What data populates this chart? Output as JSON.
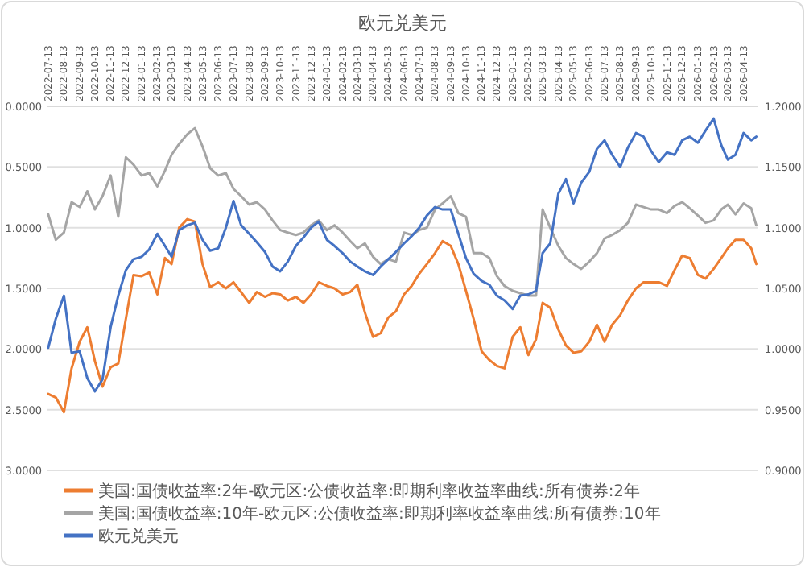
{
  "chart_data": {
    "type": "line",
    "title": "欧元兑美元",
    "x": [
      "2022-07-13",
      "2022-07-28",
      "2022-08-13",
      "2022-08-28",
      "2022-09-13",
      "2022-09-28",
      "2022-10-13",
      "2022-10-28",
      "2022-11-13",
      "2022-11-28",
      "2022-12-13",
      "2022-12-28",
      "2023-01-13",
      "2023-01-28",
      "2023-02-13",
      "2023-02-28",
      "2023-03-13",
      "2023-03-28",
      "2023-04-13",
      "2023-04-28",
      "2023-05-13",
      "2023-05-28",
      "2023-06-13",
      "2023-06-28",
      "2023-07-13",
      "2023-07-28",
      "2023-08-13",
      "2023-08-28",
      "2023-09-13",
      "2023-09-28",
      "2023-10-13",
      "2023-10-28",
      "2023-11-13",
      "2023-11-28",
      "2023-12-13",
      "2023-12-28",
      "2024-01-13",
      "2024-01-28",
      "2024-02-13",
      "2024-02-28",
      "2024-03-13",
      "2024-03-28",
      "2024-04-13",
      "2024-04-28",
      "2024-05-13",
      "2024-05-28",
      "2024-06-13",
      "2024-06-28",
      "2024-07-13",
      "2024-07-28",
      "2024-08-13",
      "2024-08-28",
      "2024-09-13",
      "2024-09-28",
      "2024-10-13",
      "2024-10-28",
      "2024-11-13",
      "2024-11-28",
      "2024-12-13",
      "2024-12-28",
      "2025-01-13",
      "2025-01-28",
      "2025-02-13",
      "2025-02-28",
      "2025-03-13",
      "2025-03-28",
      "2025-04-13",
      "2025-04-28",
      "2025-05-13",
      "2025-05-28",
      "2025-06-13",
      "2025-06-28",
      "2025-07-13",
      "2025-07-28",
      "2025-08-13",
      "2025-08-28",
      "2025-09-13",
      "2025-09-28",
      "2025-10-13",
      "2025-10-28",
      "2025-11-13",
      "2025-11-28",
      "2025-12-13",
      "2025-12-28",
      "2026-01-13",
      "2026-01-28",
      "2026-02-13",
      "2026-02-28",
      "2026-03-13",
      "2026-03-28",
      "2026-04-13",
      "2026-04-28",
      "2026-05-08"
    ],
    "xlim": [
      "2022-07-10",
      "2026-05-12"
    ],
    "xticks": [
      "2022-07-13",
      "2022-08-13",
      "2022-09-13",
      "2022-10-13",
      "2022-11-13",
      "2022-12-13",
      "2023-01-13",
      "2023-02-13",
      "2023-03-13",
      "2023-04-13",
      "2023-05-13",
      "2023-06-13",
      "2023-07-13",
      "2023-08-13",
      "2023-09-13",
      "2023-10-13",
      "2023-11-13",
      "2023-12-13",
      "2024-01-13",
      "2024-02-13",
      "2024-03-13",
      "2024-04-13",
      "2024-05-13",
      "2024-06-13",
      "2024-07-13",
      "2024-08-13",
      "2024-09-13",
      "2024-10-13",
      "2024-11-13",
      "2024-12-13",
      "2025-01-13",
      "2025-02-13",
      "2025-03-13",
      "2025-04-13",
      "2025-05-13",
      "2025-06-13",
      "2025-07-13",
      "2025-08-13",
      "2025-09-13",
      "2025-10-13",
      "2025-11-13",
      "2025-12-13",
      "2026-01-13",
      "2026-02-13",
      "2026-03-13",
      "2026-04-13"
    ],
    "ylim": [
      3,
      0
    ],
    "yticks": [
      {
        "value": 0,
        "label": "0.0000"
      },
      {
        "value": 0.5,
        "label": "0.5000"
      },
      {
        "value": 1,
        "label": "1.0000"
      },
      {
        "value": 1.5,
        "label": "1.5000"
      },
      {
        "value": 2,
        "label": "2.0000"
      },
      {
        "value": 2.5,
        "label": "2.5000"
      },
      {
        "value": 3,
        "label": "3.0000"
      }
    ],
    "y2lim": [
      0.9,
      1.2
    ],
    "y2ticks": [
      {
        "value": 0.9,
        "label": "0.9000"
      },
      {
        "value": 0.95,
        "label": "0.9500"
      },
      {
        "value": 1.0,
        "label": "1.0000"
      },
      {
        "value": 1.05,
        "label": "1.0500"
      },
      {
        "value": 1.1,
        "label": "1.1000"
      },
      {
        "value": 1.15,
        "label": "1.1500"
      },
      {
        "value": 1.2,
        "label": "1.2000"
      }
    ],
    "grid": "y",
    "legend": "bottom",
    "series": [
      {
        "name": "美国:国债收益率:2年-欧元区:公债收益率:即期利率收益率曲线:所有债券:2年",
        "color": "#ed7d31",
        "values": [
          2.37,
          2.4,
          2.52,
          2.16,
          1.94,
          1.82,
          2.1,
          2.31,
          2.15,
          2.12,
          1.75,
          1.39,
          1.4,
          1.37,
          1.55,
          1.25,
          1.3,
          1.0,
          0.93,
          0.95,
          1.3,
          1.49,
          1.45,
          1.5,
          1.45,
          1.53,
          1.62,
          1.53,
          1.57,
          1.54,
          1.55,
          1.6,
          1.57,
          1.62,
          1.55,
          1.45,
          1.48,
          1.5,
          1.55,
          1.53,
          1.47,
          1.7,
          1.9,
          1.87,
          1.74,
          1.69,
          1.55,
          1.48,
          1.38,
          1.3,
          1.21,
          1.11,
          1.15,
          1.3,
          1.52,
          1.75,
          2.02,
          2.09,
          2.14,
          2.16,
          1.9,
          1.82,
          2.05,
          1.92,
          1.62,
          1.66,
          1.84,
          1.97,
          2.03,
          2.02,
          1.94,
          1.8,
          1.94,
          1.8,
          1.72,
          1.6,
          1.5,
          1.45,
          1.45,
          1.45,
          1.48,
          1.35,
          1.23,
          1.25,
          1.39,
          1.42,
          1.34,
          1.25,
          1.17,
          1.1,
          1.1,
          1.17,
          1.3
        ]
      },
      {
        "name": "美国:国债收益率:10年-欧元区:公债收益率:即期利率收益率曲线:所有债券:10年",
        "color": "#a5a5a5",
        "values": [
          0.89,
          1.1,
          1.04,
          0.79,
          0.83,
          0.7,
          0.85,
          0.74,
          0.57,
          0.91,
          0.42,
          0.48,
          0.57,
          0.55,
          0.66,
          0.53,
          0.4,
          0.31,
          0.23,
          0.18,
          0.33,
          0.51,
          0.57,
          0.55,
          0.68,
          0.74,
          0.81,
          0.79,
          0.85,
          0.94,
          1.02,
          1.04,
          1.06,
          1.04,
          0.98,
          0.94,
          1.02,
          0.98,
          1.04,
          1.11,
          1.17,
          1.13,
          1.24,
          1.3,
          1.26,
          1.28,
          1.04,
          1.06,
          1.02,
          1.0,
          0.85,
          0.8,
          0.74,
          0.88,
          0.91,
          1.21,
          1.21,
          1.25,
          1.4,
          1.48,
          1.52,
          1.54,
          1.56,
          1.56,
          0.85,
          1.0,
          1.15,
          1.25,
          1.3,
          1.34,
          1.28,
          1.21,
          1.09,
          1.06,
          1.02,
          0.96,
          0.81,
          0.83,
          0.85,
          0.85,
          0.88,
          0.82,
          0.79,
          0.84,
          0.9,
          0.96,
          0.94,
          0.85,
          0.81,
          0.89,
          0.8,
          0.84,
          0.98
        ]
      },
      {
        "name": "欧元兑美元",
        "color": "#4472c4",
        "axis": "y2",
        "values": [
          1.001,
          1.025,
          1.044,
          0.997,
          0.998,
          0.976,
          0.965,
          0.975,
          1.018,
          1.044,
          1.065,
          1.074,
          1.076,
          1.082,
          1.095,
          1.085,
          1.076,
          1.098,
          1.102,
          1.104,
          1.09,
          1.081,
          1.083,
          1.1,
          1.122,
          1.102,
          1.095,
          1.088,
          1.08,
          1.068,
          1.064,
          1.072,
          1.085,
          1.092,
          1.1,
          1.105,
          1.09,
          1.085,
          1.079,
          1.072,
          1.068,
          1.064,
          1.061,
          1.068,
          1.074,
          1.08,
          1.087,
          1.093,
          1.1,
          1.11,
          1.117,
          1.115,
          1.115,
          1.095,
          1.075,
          1.062,
          1.056,
          1.053,
          1.044,
          1.04,
          1.033,
          1.044,
          1.045,
          1.048,
          1.079,
          1.087,
          1.128,
          1.14,
          1.12,
          1.137,
          1.146,
          1.165,
          1.172,
          1.16,
          1.15,
          1.166,
          1.178,
          1.175,
          1.163,
          1.154,
          1.162,
          1.16,
          1.172,
          1.175,
          1.17,
          1.18,
          1.19,
          1.168,
          1.156,
          1.16,
          1.178,
          1.172,
          1.175
        ]
      }
    ]
  }
}
